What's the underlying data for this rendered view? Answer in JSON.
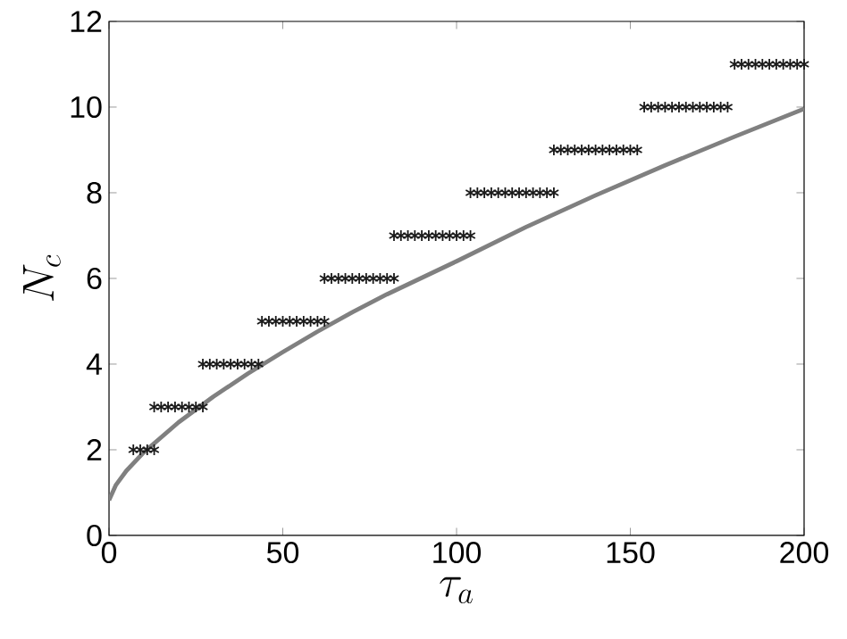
{
  "chart_data": {
    "type": "scatter",
    "xlabel": "\\tau_a",
    "ylabel": "N_c",
    "xlim": [
      0,
      200
    ],
    "ylim": [
      0,
      12
    ],
    "xticks": [
      0,
      50,
      100,
      150,
      200
    ],
    "yticks": [
      0,
      2,
      4,
      6,
      8,
      10,
      12
    ],
    "grid": false,
    "series": [
      {
        "marker": "cross",
        "color": "#1a1a1a",
        "x": [
          7,
          9,
          11,
          13,
          13,
          15,
          17,
          19,
          21,
          23,
          25,
          27,
          27,
          29,
          31,
          33,
          35,
          37,
          39,
          41,
          43,
          44,
          46,
          48,
          50,
          52,
          54,
          56,
          58,
          60,
          62,
          62,
          64,
          66,
          68,
          70,
          72,
          74,
          76,
          78,
          80,
          82,
          82,
          84,
          86,
          88,
          90,
          92,
          94,
          96,
          98,
          100,
          102,
          104,
          104,
          106,
          108,
          110,
          112,
          114,
          116,
          118,
          120,
          122,
          124,
          126,
          128,
          128,
          130,
          132,
          134,
          136,
          138,
          140,
          142,
          144,
          146,
          148,
          150,
          152,
          154,
          156,
          158,
          160,
          162,
          164,
          166,
          168,
          170,
          172,
          174,
          176,
          178,
          180,
          182,
          184,
          186,
          188,
          190,
          192,
          194,
          196,
          198,
          200
        ],
        "values": [
          2,
          2,
          2,
          2,
          3,
          3,
          3,
          3,
          3,
          3,
          3,
          3,
          4,
          4,
          4,
          4,
          4,
          4,
          4,
          4,
          4,
          5,
          5,
          5,
          5,
          5,
          5,
          5,
          5,
          5,
          5,
          6,
          6,
          6,
          6,
          6,
          6,
          6,
          6,
          6,
          6,
          6,
          7,
          7,
          7,
          7,
          7,
          7,
          7,
          7,
          7,
          7,
          7,
          7,
          8,
          8,
          8,
          8,
          8,
          8,
          8,
          8,
          8,
          8,
          8,
          8,
          8,
          9,
          9,
          9,
          9,
          9,
          9,
          9,
          9,
          9,
          9,
          9,
          9,
          9,
          10,
          10,
          10,
          10,
          10,
          10,
          10,
          10,
          10,
          10,
          10,
          10,
          10,
          11,
          11,
          11,
          11,
          11,
          11,
          11,
          11,
          11,
          11,
          11
        ]
      },
      {
        "type": "line",
        "color": "#808080",
        "line_style": "solid",
        "x": [
          0,
          2,
          5,
          10,
          20,
          30,
          40,
          50,
          60,
          70,
          80,
          100,
          120,
          140,
          160,
          180,
          200
        ],
        "values": [
          0.82,
          1.18,
          1.51,
          1.94,
          2.64,
          3.24,
          3.78,
          4.28,
          4.76,
          5.21,
          5.63,
          6.4,
          7.2,
          7.94,
          8.64,
          9.31,
          9.96
        ]
      }
    ]
  }
}
